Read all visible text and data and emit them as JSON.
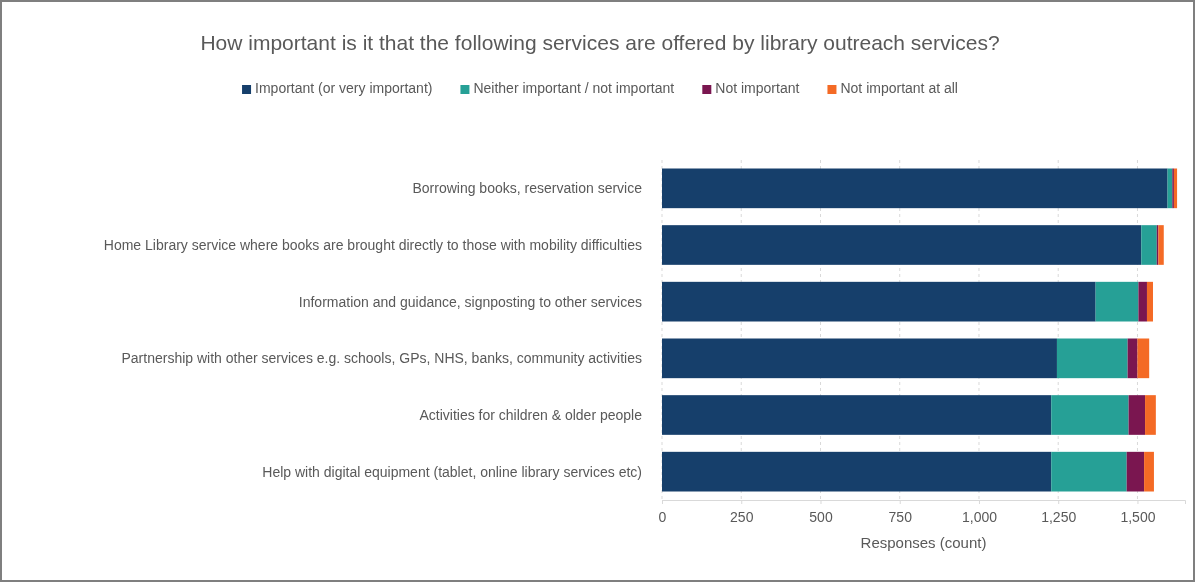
{
  "chart_data": {
    "type": "bar",
    "orientation": "horizontal",
    "stacked": true,
    "title": "How important is it that the following services are offered by library outreach services?",
    "xlabel": "Responses (count)",
    "categories": [
      "Borrowing books, reservation service",
      "Home Library service where books are brought directly to those with mobility difficulties",
      "Information and guidance, signposting to other services",
      "Partnership with other services e.g. schools, GPs, NHS, banks, community activities",
      "Activities for children & older people",
      "Help with digital equipment (tablet, online library services etc)"
    ],
    "series": [
      {
        "name": "Important (or very important)",
        "color": "#163f6b",
        "values": [
          1595,
          1512,
          1368,
          1246,
          1228,
          1228
        ]
      },
      {
        "name": "Neither important / not important",
        "color": "#26a096",
        "values": [
          15,
          49,
          135,
          223,
          244,
          238
        ]
      },
      {
        "name": "Not important",
        "color": "#7a1650",
        "values": [
          5,
          5,
          27,
          31,
          52,
          55
        ]
      },
      {
        "name": "Not important at all",
        "color": "#f46a25",
        "values": [
          10,
          17,
          19,
          37,
          34,
          31
        ]
      }
    ],
    "xlim": [
      0,
      1650
    ],
    "xticks": [
      0,
      {
        "value": 250,
        "label": "250"
      },
      {
        "value": 500,
        "label": "500"
      },
      {
        "value": 750,
        "label": "750"
      },
      {
        "value": 1000,
        "label": "1,000"
      },
      {
        "value": 1250,
        "label": "1,250"
      },
      {
        "value": 1500,
        "label": "1,500"
      }
    ],
    "grid": "x",
    "legend": "top"
  }
}
